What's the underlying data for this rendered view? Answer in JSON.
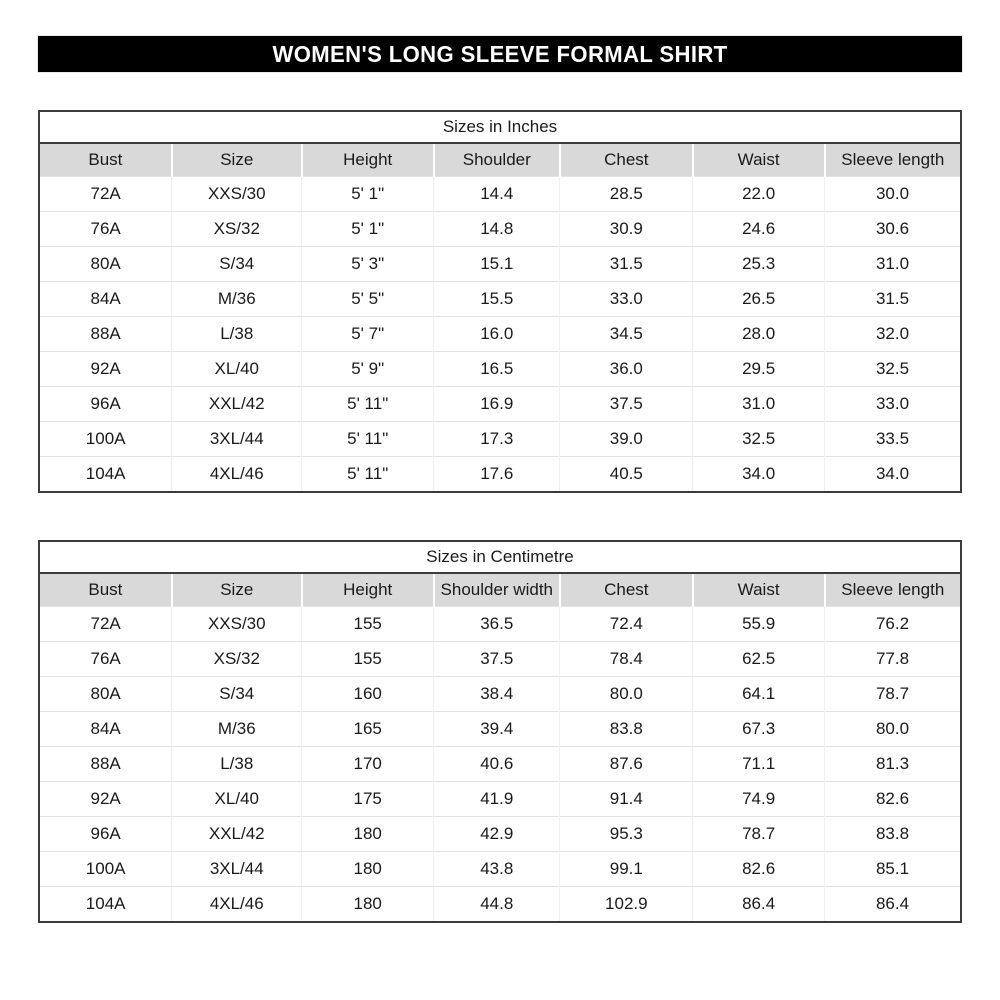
{
  "banner": {
    "title": "WOMEN'S LONG SLEEVE FORMAL SHIRT"
  },
  "colors": {
    "banner_bg": "#000000",
    "banner_text": "#ffffff",
    "header_row_bg": "#d9d9d9",
    "table_border": "#3b3b3b"
  },
  "layout_hints": {
    "column_widths_pct": [
      14.4,
      14.1,
      14.3,
      13.7,
      14.4,
      14.3,
      14.8
    ]
  },
  "tables": [
    {
      "title": "Sizes in Inches",
      "columns": [
        "Bust",
        "Size",
        "Height",
        "Shoulder",
        "Chest",
        "Waist",
        "Sleeve length"
      ],
      "rows": [
        [
          "72A",
          "XXS/30",
          "5' 1\"",
          "14.4",
          "28.5",
          "22.0",
          "30.0"
        ],
        [
          "76A",
          "XS/32",
          "5' 1\"",
          "14.8",
          "30.9",
          "24.6",
          "30.6"
        ],
        [
          "80A",
          "S/34",
          "5' 3\"",
          "15.1",
          "31.5",
          "25.3",
          "31.0"
        ],
        [
          "84A",
          "M/36",
          "5' 5\"",
          "15.5",
          "33.0",
          "26.5",
          "31.5"
        ],
        [
          "88A",
          "L/38",
          "5' 7\"",
          "16.0",
          "34.5",
          "28.0",
          "32.0"
        ],
        [
          "92A",
          "XL/40",
          "5' 9\"",
          "16.5",
          "36.0",
          "29.5",
          "32.5"
        ],
        [
          "96A",
          "XXL/42",
          "5' 11\"",
          "16.9",
          "37.5",
          "31.0",
          "33.0"
        ],
        [
          "100A",
          "3XL/44",
          "5' 11\"",
          "17.3",
          "39.0",
          "32.5",
          "33.5"
        ],
        [
          "104A",
          "4XL/46",
          "5' 11\"",
          "17.6",
          "40.5",
          "34.0",
          "34.0"
        ]
      ]
    },
    {
      "title": "Sizes in Centimetre",
      "columns": [
        "Bust",
        "Size",
        "Height",
        "Shoulder width",
        "Chest",
        "Waist",
        "Sleeve length"
      ],
      "rows": [
        [
          "72A",
          "XXS/30",
          "155",
          "36.5",
          "72.4",
          "55.9",
          "76.2"
        ],
        [
          "76A",
          "XS/32",
          "155",
          "37.5",
          "78.4",
          "62.5",
          "77.8"
        ],
        [
          "80A",
          "S/34",
          "160",
          "38.4",
          "80.0",
          "64.1",
          "78.7"
        ],
        [
          "84A",
          "M/36",
          "165",
          "39.4",
          "83.8",
          "67.3",
          "80.0"
        ],
        [
          "88A",
          "L/38",
          "170",
          "40.6",
          "87.6",
          "71.1",
          "81.3"
        ],
        [
          "92A",
          "XL/40",
          "175",
          "41.9",
          "91.4",
          "74.9",
          "82.6"
        ],
        [
          "96A",
          "XXL/42",
          "180",
          "42.9",
          "95.3",
          "78.7",
          "83.8"
        ],
        [
          "100A",
          "3XL/44",
          "180",
          "43.8",
          "99.1",
          "82.6",
          "85.1"
        ],
        [
          "104A",
          "4XL/46",
          "180",
          "44.8",
          "102.9",
          "86.4",
          "86.4"
        ]
      ]
    }
  ]
}
